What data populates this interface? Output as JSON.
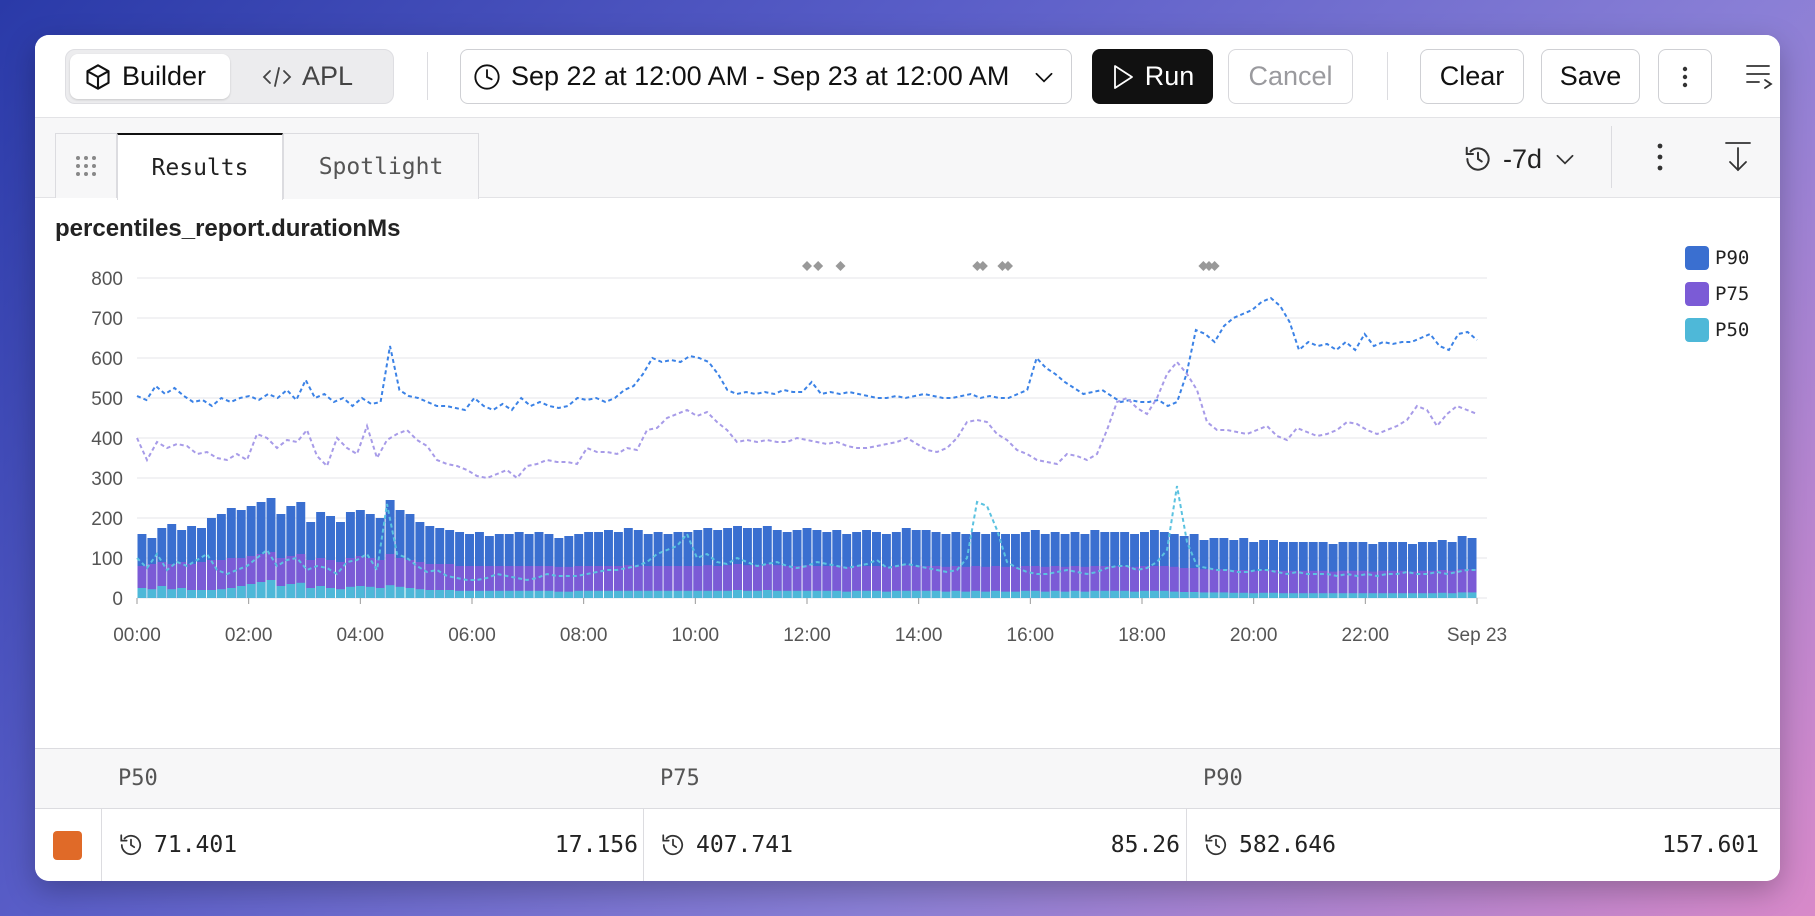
{
  "toolbar": {
    "builder_label": "Builder",
    "apl_label": "APL",
    "date_range": "Sep 22 at 12:00 AM - Sep 23 at 12:00 AM",
    "run_label": "Run",
    "cancel_label": "Cancel",
    "clear_label": "Clear",
    "save_label": "Save"
  },
  "results_bar": {
    "tabs": [
      {
        "label": "Results"
      },
      {
        "label": "Spotlight"
      }
    ],
    "time_shift": "-7d"
  },
  "chart": {
    "title": "percentiles_report.durationMs"
  },
  "chart_data": {
    "type": "bar",
    "title": "percentiles_report.durationMs",
    "ylim": [
      0,
      800
    ],
    "yticks": [
      "0",
      "100",
      "200",
      "300",
      "400",
      "500",
      "600",
      "700",
      "800"
    ],
    "xticks": [
      "00:00",
      "02:00",
      "04:00",
      "06:00",
      "08:00",
      "10:00",
      "12:00",
      "14:00",
      "16:00",
      "18:00",
      "20:00",
      "22:00",
      "Sep 23"
    ],
    "grid": true,
    "legend_position": "right",
    "series": [
      {
        "name": "P90",
        "color": "#3a6fd0",
        "style": "bar",
        "values": [
          160,
          150,
          175,
          185,
          170,
          180,
          175,
          200,
          210,
          225,
          220,
          230,
          240,
          250,
          210,
          230,
          240,
          190,
          215,
          205,
          190,
          215,
          220,
          210,
          200,
          245,
          220,
          210,
          190,
          180,
          175,
          170,
          165,
          160,
          165,
          155,
          160,
          160,
          165,
          160,
          165,
          160,
          150,
          155,
          160,
          165,
          165,
          170,
          165,
          175,
          170,
          160,
          165,
          160,
          165,
          165,
          170,
          175,
          170,
          175,
          180,
          175,
          175,
          180,
          170,
          165,
          170,
          175,
          170,
          165,
          170,
          160,
          165,
          170,
          165,
          160,
          165,
          175,
          170,
          170,
          165,
          160,
          165,
          160,
          165,
          160,
          165,
          160,
          160,
          165,
          170,
          160,
          165,
          160,
          165,
          160,
          170,
          165,
          165,
          165,
          160,
          165,
          170,
          165,
          160,
          155,
          160,
          145,
          150,
          150,
          145,
          150,
          140,
          145,
          145,
          140,
          140,
          140,
          140,
          140,
          135,
          140,
          140,
          140,
          135,
          140,
          140,
          140,
          135,
          140,
          140,
          145,
          140,
          155,
          150
        ]
      },
      {
        "name": "P75",
        "color": "#7b5bd6",
        "style": "bar",
        "values": [
          80,
          85,
          90,
          85,
          90,
          85,
          90,
          95,
          95,
          100,
          100,
          105,
          110,
          115,
          100,
          105,
          110,
          95,
          100,
          95,
          90,
          100,
          105,
          100,
          95,
          110,
          100,
          95,
          90,
          85,
          85,
          85,
          80,
          80,
          80,
          80,
          80,
          80,
          80,
          80,
          80,
          80,
          78,
          78,
          80,
          80,
          80,
          80,
          80,
          82,
          80,
          80,
          80,
          80,
          80,
          80,
          80,
          82,
          80,
          82,
          85,
          82,
          82,
          85,
          82,
          80,
          80,
          82,
          80,
          80,
          80,
          78,
          80,
          80,
          80,
          78,
          80,
          82,
          80,
          80,
          80,
          78,
          80,
          78,
          80,
          78,
          80,
          78,
          78,
          80,
          80,
          78,
          80,
          78,
          80,
          78,
          80,
          80,
          80,
          80,
          78,
          80,
          80,
          80,
          78,
          75,
          75,
          72,
          72,
          72,
          70,
          70,
          68,
          70,
          70,
          68,
          68,
          68,
          68,
          68,
          66,
          68,
          68,
          68,
          66,
          68,
          68,
          68,
          66,
          68,
          68,
          70,
          68,
          72,
          72
        ]
      },
      {
        "name": "P50",
        "color": "#4eb8d8",
        "style": "bar",
        "values": [
          25,
          22,
          30,
          22,
          25,
          20,
          20,
          20,
          22,
          25,
          30,
          35,
          40,
          45,
          30,
          35,
          38,
          25,
          30,
          25,
          22,
          28,
          30,
          28,
          25,
          32,
          28,
          25,
          22,
          20,
          20,
          20,
          18,
          18,
          18,
          18,
          18,
          18,
          18,
          18,
          18,
          18,
          16,
          16,
          18,
          18,
          18,
          18,
          18,
          18,
          18,
          18,
          18,
          18,
          18,
          18,
          18,
          18,
          18,
          18,
          20,
          18,
          18,
          20,
          18,
          18,
          18,
          18,
          18,
          18,
          18,
          16,
          18,
          18,
          18,
          16,
          18,
          18,
          18,
          18,
          18,
          16,
          18,
          16,
          18,
          16,
          18,
          16,
          16,
          18,
          18,
          16,
          18,
          16,
          18,
          16,
          18,
          18,
          18,
          18,
          16,
          18,
          18,
          18,
          16,
          15,
          15,
          14,
          14,
          14,
          13,
          13,
          12,
          13,
          13,
          12,
          12,
          12,
          12,
          12,
          12,
          12,
          12,
          12,
          12,
          12,
          12,
          12,
          12,
          12,
          12,
          13,
          12,
          14,
          14
        ]
      },
      {
        "name": "P90 (-7d)",
        "color": "#3b82e6",
        "style": "dashed",
        "values": [
          505,
          495,
          530,
          510,
          525,
          505,
          490,
          495,
          480,
          500,
          490,
          500,
          505,
          495,
          510,
          500,
          520,
          495,
          545,
          500,
          510,
          490,
          500,
          480,
          500,
          485,
          490,
          630,
          520,
          505,
          500,
          490,
          480,
          480,
          475,
          470,
          500,
          480,
          470,
          485,
          470,
          500,
          480,
          490,
          480,
          475,
          480,
          500,
          495,
          500,
          490,
          500,
          520,
          530,
          560,
          600,
          590,
          595,
          590,
          605,
          600,
          590,
          560,
          520,
          510,
          515,
          510,
          515,
          510,
          520,
          515,
          515,
          540,
          510,
          515,
          510,
          515,
          510,
          505,
          500,
          500,
          505,
          500,
          505,
          510,
          505,
          500,
          500,
          505,
          510,
          500,
          505,
          500,
          500,
          510,
          520,
          600,
          575,
          560,
          540,
          525,
          510,
          515,
          520,
          505,
          490,
          495,
          490,
          490,
          495,
          480,
          490,
          560,
          670,
          660,
          640,
          680,
          700,
          710,
          720,
          740,
          750,
          730,
          690,
          620,
          640,
          630,
          635,
          620,
          640,
          620,
          660,
          630,
          640,
          635,
          640,
          640,
          650,
          660,
          630,
          620,
          660,
          665,
          645
        ]
      },
      {
        "name": "P75 (-7d)",
        "color": "#a79be8",
        "style": "dashed",
        "values": [
          400,
          345,
          390,
          375,
          385,
          380,
          360,
          365,
          350,
          345,
          360,
          345,
          410,
          400,
          375,
          395,
          390,
          420,
          355,
          330,
          400,
          375,
          360,
          430,
          350,
          395,
          410,
          420,
          395,
          380,
          345,
          335,
          330,
          320,
          305,
          300,
          310,
          320,
          300,
          330,
          335,
          345,
          340,
          340,
          335,
          375,
          365,
          365,
          360,
          375,
          370,
          420,
          425,
          450,
          460,
          470,
          455,
          465,
          440,
          420,
          390,
          395,
          390,
          395,
          390,
          390,
          400,
          395,
          390,
          385,
          390,
          380,
          375,
          375,
          380,
          385,
          390,
          400,
          385,
          370,
          365,
          375,
          400,
          440,
          445,
          440,
          410,
          395,
          370,
          360,
          345,
          340,
          335,
          360,
          355,
          345,
          360,
          420,
          490,
          500,
          475,
          460,
          500,
          560,
          590,
          560,
          520,
          440,
          420,
          420,
          415,
          410,
          420,
          430,
          405,
          395,
          425,
          415,
          405,
          410,
          420,
          440,
          435,
          420,
          410,
          420,
          430,
          445,
          480,
          470,
          430,
          460,
          480,
          470,
          460
        ]
      },
      {
        "name": "P50 (-7d)",
        "color": "#5bc2e0",
        "style": "dashed",
        "values": [
          100,
          75,
          110,
          70,
          90,
          80,
          95,
          110,
          70,
          60,
          70,
          80,
          100,
          120,
          80,
          95,
          100,
          70,
          80,
          75,
          60,
          90,
          95,
          110,
          70,
          235,
          110,
          100,
          80,
          65,
          70,
          55,
          50,
          45,
          45,
          50,
          60,
          55,
          50,
          45,
          50,
          60,
          55,
          55,
          55,
          60,
          65,
          70,
          70,
          75,
          80,
          90,
          110,
          120,
          130,
          160,
          100,
          110,
          90,
          85,
          100,
          90,
          80,
          85,
          90,
          80,
          75,
          80,
          90,
          85,
          80,
          75,
          80,
          85,
          95,
          75,
          80,
          85,
          80,
          75,
          70,
          65,
          70,
          100,
          240,
          230,
          170,
          90,
          75,
          65,
          60,
          60,
          65,
          70,
          65,
          60,
          65,
          75,
          80,
          80,
          70,
          75,
          90,
          120,
          280,
          140,
          80,
          75,
          70,
          70,
          65,
          65,
          70,
          70,
          65,
          60,
          65,
          60,
          60,
          60,
          55,
          60,
          55,
          60,
          55,
          60,
          60,
          65,
          60,
          60,
          65,
          60,
          65,
          70,
          70
        ]
      }
    ],
    "annotation_markers_hours": [
      12.0,
      12.2,
      12.6,
      15.05,
      15.15,
      15.5,
      15.6,
      19.1,
      19.2,
      19.3
    ]
  },
  "table": {
    "headers": [
      "P50",
      "P75",
      "P90"
    ],
    "row": {
      "swatch_color": "#e06a28",
      "cells": [
        {
          "current": "71.401",
          "previous": "17.156"
        },
        {
          "current": "407.741",
          "previous": "85.26"
        },
        {
          "current": "582.646",
          "previous": "157.601"
        }
      ]
    }
  }
}
